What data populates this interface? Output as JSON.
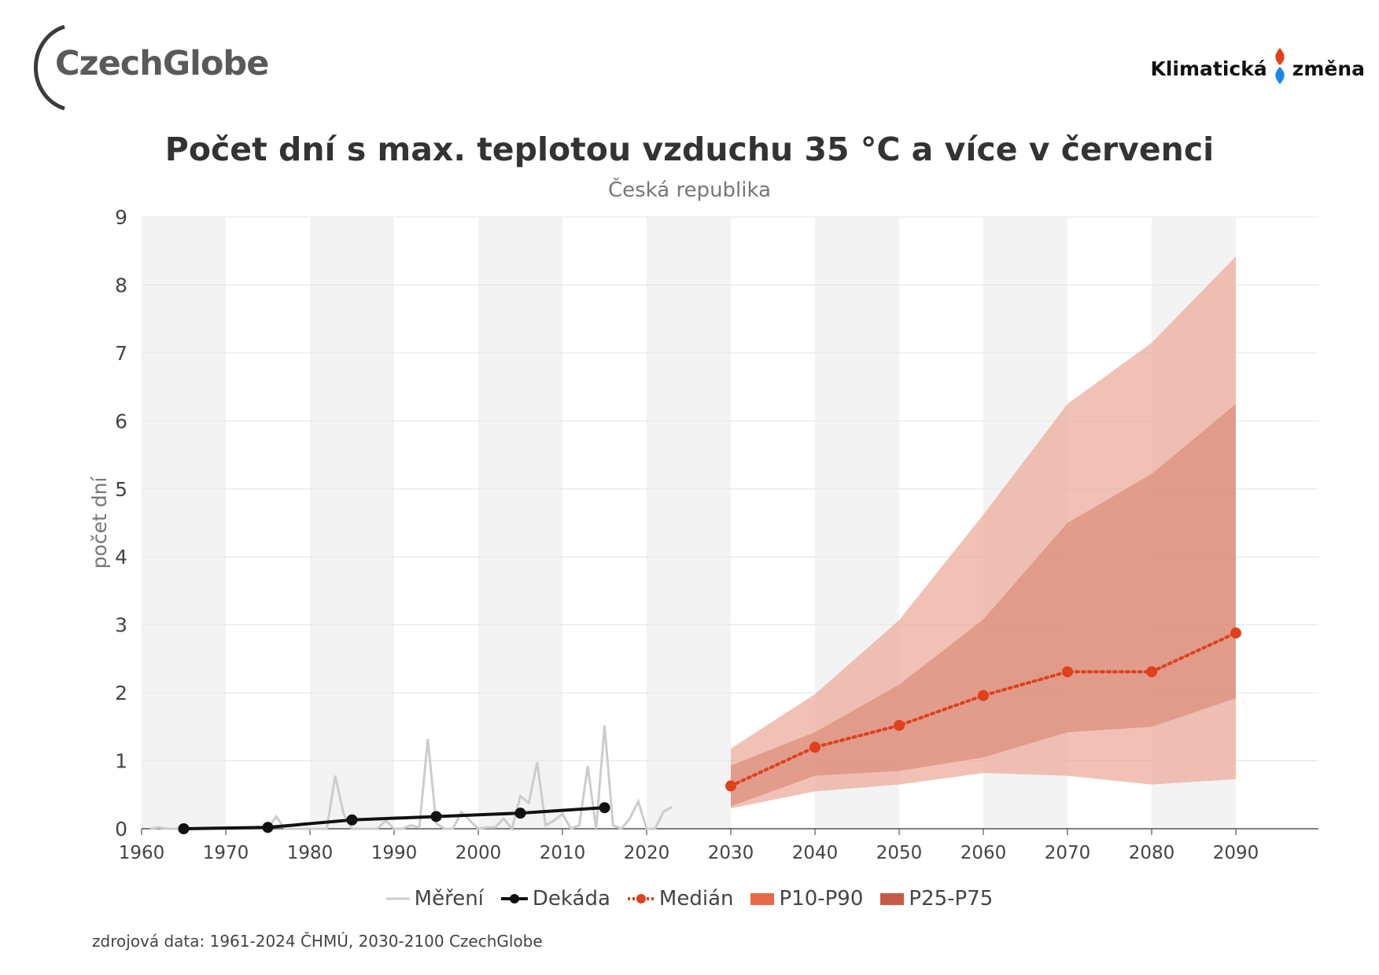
{
  "logos": {
    "left_text": "CzechGlobe",
    "right_text_1": "Klimatická",
    "right_text_2": "změna",
    "left_icon": "czechglobe-arc-logo",
    "right_icon": "red-blue-drop-icon"
  },
  "colors": {
    "measurement": "#cccccc",
    "decade": "#111111",
    "median": "#e0401c",
    "p10_p90": "#eca797",
    "p25_p75": "#d88975",
    "legend_p10_p90": "#e8694a",
    "legend_p25_p75": "#c75a44",
    "band_stripe": "#f3f3f3"
  },
  "chart_data": {
    "type": "line",
    "title": "Počet dní s max. teplotou vzduchu 35 °C a více v červenci",
    "subtitle": "Česká republika",
    "ylabel": "počet dní",
    "xlabel": "",
    "xlim": [
      1960,
      2100
    ],
    "ylim": [
      0,
      9
    ],
    "x_ticks": [
      1960,
      1970,
      1980,
      1990,
      2000,
      2010,
      2020,
      2030,
      2040,
      2050,
      2060,
      2070,
      2080,
      2090
    ],
    "y_ticks": [
      0,
      1,
      2,
      3,
      4,
      5,
      6,
      7,
      8,
      9
    ],
    "grid": true,
    "legend_position": "bottom",
    "series": [
      {
        "name": "Měření",
        "kind": "line",
        "x": [
          1961,
          1962,
          1963,
          1964,
          1965,
          1966,
          1967,
          1968,
          1969,
          1970,
          1971,
          1972,
          1973,
          1974,
          1975,
          1976,
          1977,
          1978,
          1979,
          1980,
          1981,
          1982,
          1983,
          1984,
          1985,
          1986,
          1987,
          1988,
          1989,
          1990,
          1991,
          1992,
          1993,
          1994,
          1995,
          1996,
          1997,
          1998,
          1999,
          2000,
          2001,
          2002,
          2003,
          2004,
          2005,
          2006,
          2007,
          2008,
          2009,
          2010,
          2011,
          2012,
          2013,
          2014,
          2015,
          2016,
          2017,
          2018,
          2019,
          2020,
          2021,
          2022,
          2023
        ],
        "y": [
          0,
          0.02,
          0,
          0,
          0,
          0,
          0,
          0,
          0,
          0,
          0,
          0,
          0,
          0,
          0,
          0.18,
          0,
          0,
          0,
          0,
          0,
          0,
          0.78,
          0.22,
          0,
          0,
          0,
          0,
          0.12,
          0,
          0,
          0.05,
          0.02,
          1.32,
          0.08,
          0,
          0,
          0.25,
          0.12,
          0,
          0.02,
          0.02,
          0.15,
          0,
          0.48,
          0.38,
          0.98,
          0.05,
          0.12,
          0.22,
          0,
          0.05,
          0.92,
          0,
          1.52,
          0.05,
          0,
          0.15,
          0.4,
          0,
          0,
          0.25,
          0.32
        ]
      },
      {
        "name": "Dekáda",
        "kind": "line-markers",
        "x": [
          1965,
          1975,
          1985,
          1995,
          2005,
          2015
        ],
        "y": [
          0.0,
          0.02,
          0.13,
          0.18,
          0.23,
          0.31
        ]
      },
      {
        "name": "Medián",
        "kind": "dotted-markers",
        "x": [
          2030,
          2040,
          2050,
          2060,
          2070,
          2080,
          2090
        ],
        "y": [
          0.63,
          1.2,
          1.52,
          1.96,
          2.31,
          2.31,
          2.88
        ]
      },
      {
        "name": "P10-P90",
        "kind": "band",
        "x": [
          2030,
          2040,
          2050,
          2060,
          2070,
          2080,
          2090
        ],
        "low": [
          0.3,
          0.55,
          0.65,
          0.82,
          0.78,
          0.65,
          0.73
        ],
        "high": [
          1.18,
          1.98,
          3.07,
          4.62,
          6.25,
          7.15,
          8.42
        ]
      },
      {
        "name": "P25-P75",
        "kind": "band",
        "x": [
          2030,
          2040,
          2050,
          2060,
          2070,
          2080,
          2090
        ],
        "low": [
          0.33,
          0.78,
          0.85,
          1.05,
          1.42,
          1.5,
          1.92
        ],
        "high": [
          0.93,
          1.42,
          2.12,
          3.08,
          4.5,
          5.22,
          6.25
        ]
      }
    ]
  },
  "source": "zdrojová data: 1961-2024 ČHMÚ, 2030-2100 CzechGlobe"
}
